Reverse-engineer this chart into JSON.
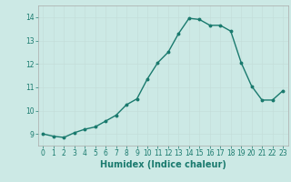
{
  "x": [
    0,
    1,
    2,
    3,
    4,
    5,
    6,
    7,
    8,
    9,
    10,
    11,
    12,
    13,
    14,
    15,
    16,
    17,
    18,
    19,
    20,
    21,
    22,
    23
  ],
  "y": [
    9.0,
    8.9,
    8.85,
    9.05,
    9.2,
    9.3,
    9.55,
    9.8,
    10.25,
    10.5,
    11.35,
    12.05,
    12.5,
    13.3,
    13.95,
    13.9,
    13.65,
    13.65,
    13.4,
    12.05,
    11.05,
    10.45,
    10.45,
    10.85
  ],
  "line_color": "#1a7a6e",
  "marker": "o",
  "marker_size": 1.8,
  "line_width": 1.0,
  "xlabel": "Humidex (Indice chaleur)",
  "xlabel_fontsize": 7,
  "xlabel_color": "#1a7a6e",
  "xlabel_bold": true,
  "ylim": [
    8.5,
    14.5
  ],
  "xlim": [
    -0.5,
    23.5
  ],
  "yticks": [
    9,
    10,
    11,
    12,
    13,
    14
  ],
  "xticks": [
    0,
    1,
    2,
    3,
    4,
    5,
    6,
    7,
    8,
    9,
    10,
    11,
    12,
    13,
    14,
    15,
    16,
    17,
    18,
    19,
    20,
    21,
    22,
    23
  ],
  "bg_color": "#cce9e5",
  "grid_color": "#c4deda",
  "tick_color": "#1a7a6e",
  "tick_fontsize": 5.5,
  "spine_color": "#aaaaaa"
}
